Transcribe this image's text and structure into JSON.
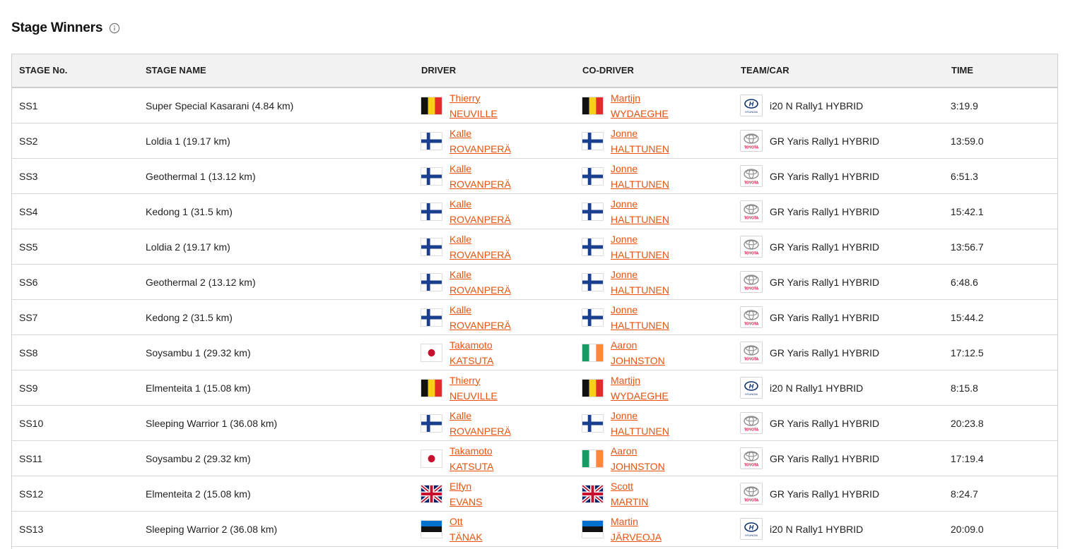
{
  "page": {
    "title": "Stage Winners",
    "info_icon": "info-circle-icon"
  },
  "table": {
    "headers": {
      "stage_no": "STAGE No.",
      "stage_name": "STAGE NAME",
      "driver": "DRIVER",
      "co_driver": "CO-DRIVER",
      "team_car": "TEAM/CAR",
      "time": "TIME"
    },
    "rows": [
      {
        "stage": "SS1",
        "name": "Super Special Kasarani (4.84 km)",
        "driver_first": "Thierry",
        "driver_last": "NEUVILLE",
        "driver_flag": "belgium-flag-icon",
        "codriver_first": "Martijn",
        "codriver_last": "WYDAEGHE",
        "codriver_flag": "belgium-flag-icon",
        "team_logo": "hyundai-logo-icon",
        "car": "i20 N Rally1 HYBRID",
        "time": "3:19.9"
      },
      {
        "stage": "SS2",
        "name": "Loldia 1 (19.17 km)",
        "driver_first": "Kalle",
        "driver_last": "ROVANPERÄ",
        "driver_flag": "finland-flag-icon",
        "codriver_first": "Jonne",
        "codriver_last": "HALTTUNEN",
        "codriver_flag": "finland-flag-icon",
        "team_logo": "toyota-logo-icon",
        "car": "GR Yaris Rally1 HYBRID",
        "time": "13:59.0"
      },
      {
        "stage": "SS3",
        "name": "Geothermal 1 (13.12 km)",
        "driver_first": "Kalle",
        "driver_last": "ROVANPERÄ",
        "driver_flag": "finland-flag-icon",
        "codriver_first": "Jonne",
        "codriver_last": "HALTTUNEN",
        "codriver_flag": "finland-flag-icon",
        "team_logo": "toyota-logo-icon",
        "car": "GR Yaris Rally1 HYBRID",
        "time": "6:51.3"
      },
      {
        "stage": "SS4",
        "name": "Kedong 1 (31.5 km)",
        "driver_first": "Kalle",
        "driver_last": "ROVANPERÄ",
        "driver_flag": "finland-flag-icon",
        "codriver_first": "Jonne",
        "codriver_last": "HALTTUNEN",
        "codriver_flag": "finland-flag-icon",
        "team_logo": "toyota-logo-icon",
        "car": "GR Yaris Rally1 HYBRID",
        "time": "15:42.1"
      },
      {
        "stage": "SS5",
        "name": "Loldia 2 (19.17 km)",
        "driver_first": "Kalle",
        "driver_last": "ROVANPERÄ",
        "driver_flag": "finland-flag-icon",
        "codriver_first": "Jonne",
        "codriver_last": "HALTTUNEN",
        "codriver_flag": "finland-flag-icon",
        "team_logo": "toyota-logo-icon",
        "car": "GR Yaris Rally1 HYBRID",
        "time": "13:56.7"
      },
      {
        "stage": "SS6",
        "name": "Geothermal 2 (13.12 km)",
        "driver_first": "Kalle",
        "driver_last": "ROVANPERÄ",
        "driver_flag": "finland-flag-icon",
        "codriver_first": "Jonne",
        "codriver_last": "HALTTUNEN",
        "codriver_flag": "finland-flag-icon",
        "team_logo": "toyota-logo-icon",
        "car": "GR Yaris Rally1 HYBRID",
        "time": "6:48.6"
      },
      {
        "stage": "SS7",
        "name": "Kedong 2 (31.5 km)",
        "driver_first": "Kalle",
        "driver_last": "ROVANPERÄ",
        "driver_flag": "finland-flag-icon",
        "codriver_first": "Jonne",
        "codriver_last": "HALTTUNEN",
        "codriver_flag": "finland-flag-icon",
        "team_logo": "toyota-logo-icon",
        "car": "GR Yaris Rally1 HYBRID",
        "time": "15:44.2"
      },
      {
        "stage": "SS8",
        "name": "Soysambu 1 (29.32 km)",
        "driver_first": "Takamoto",
        "driver_last": "KATSUTA",
        "driver_flag": "japan-flag-icon",
        "codriver_first": "Aaron",
        "codriver_last": "JOHNSTON",
        "codriver_flag": "ireland-flag-icon",
        "team_logo": "toyota-logo-icon",
        "car": "GR Yaris Rally1 HYBRID",
        "time": "17:12.5"
      },
      {
        "stage": "SS9",
        "name": "Elmenteita 1 (15.08 km)",
        "driver_first": "Thierry",
        "driver_last": "NEUVILLE",
        "driver_flag": "belgium-flag-icon",
        "codriver_first": "Martijn",
        "codriver_last": "WYDAEGHE",
        "codriver_flag": "belgium-flag-icon",
        "team_logo": "hyundai-logo-icon",
        "car": "i20 N Rally1 HYBRID",
        "time": "8:15.8"
      },
      {
        "stage": "SS10",
        "name": "Sleeping Warrior 1 (36.08 km)",
        "driver_first": "Kalle",
        "driver_last": "ROVANPERÄ",
        "driver_flag": "finland-flag-icon",
        "codriver_first": "Jonne",
        "codriver_last": "HALTTUNEN",
        "codriver_flag": "finland-flag-icon",
        "team_logo": "toyota-logo-icon",
        "car": "GR Yaris Rally1 HYBRID",
        "time": "20:23.8"
      },
      {
        "stage": "SS11",
        "name": "Soysambu 2 (29.32 km)",
        "driver_first": "Takamoto",
        "driver_last": "KATSUTA",
        "driver_flag": "japan-flag-icon",
        "codriver_first": "Aaron",
        "codriver_last": "JOHNSTON",
        "codriver_flag": "ireland-flag-icon",
        "team_logo": "toyota-logo-icon",
        "car": "GR Yaris Rally1 HYBRID",
        "time": "17:19.4"
      },
      {
        "stage": "SS12",
        "name": "Elmenteita 2 (15.08 km)",
        "driver_first": "Elfyn",
        "driver_last": "EVANS",
        "driver_flag": "uk-flag-icon",
        "codriver_first": "Scott",
        "codriver_last": "MARTIN",
        "codriver_flag": "uk-flag-icon",
        "team_logo": "toyota-logo-icon",
        "car": "GR Yaris Rally1 HYBRID",
        "time": "8:24.7"
      },
      {
        "stage": "SS13",
        "name": "Sleeping Warrior 2 (36.08 km)",
        "driver_first": "Ott",
        "driver_last": "TÄNAK",
        "driver_flag": "estonia-flag-icon",
        "codriver_first": "Martin",
        "codriver_last": "JÄRVEOJA",
        "codriver_flag": "estonia-flag-icon",
        "team_logo": "hyundai-logo-icon",
        "car": "i20 N Rally1 HYBRID",
        "time": "20:09.0"
      }
    ]
  },
  "colors": {
    "link": "#e8540f",
    "header_bg": "#f2f2f2",
    "border": "#d6d6d6",
    "hyundai_blue": "#0a2d6e",
    "toyota_red": "#d7002a"
  },
  "logo_text": {
    "hyundai": "HYUNDAI",
    "toyota": "TOYOTA"
  }
}
